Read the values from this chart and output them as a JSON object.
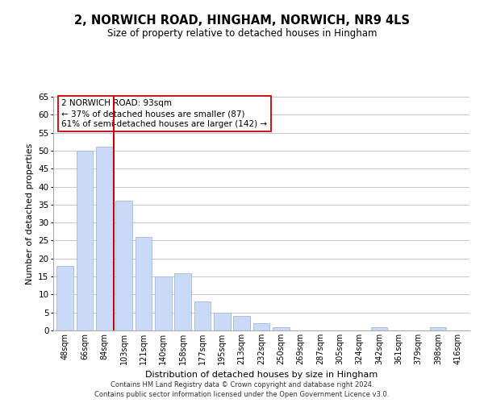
{
  "title": "2, NORWICH ROAD, HINGHAM, NORWICH, NR9 4LS",
  "subtitle": "Size of property relative to detached houses in Hingham",
  "xlabel": "Distribution of detached houses by size in Hingham",
  "ylabel": "Number of detached properties",
  "bar_labels": [
    "48sqm",
    "66sqm",
    "84sqm",
    "103sqm",
    "121sqm",
    "140sqm",
    "158sqm",
    "177sqm",
    "195sqm",
    "213sqm",
    "232sqm",
    "250sqm",
    "269sqm",
    "287sqm",
    "305sqm",
    "324sqm",
    "342sqm",
    "361sqm",
    "379sqm",
    "398sqm",
    "416sqm"
  ],
  "bar_values": [
    18,
    50,
    51,
    36,
    26,
    15,
    16,
    8,
    5,
    4,
    2,
    1,
    0,
    0,
    0,
    0,
    1,
    0,
    0,
    1,
    0
  ],
  "bar_color": "#c9daf8",
  "bar_edge_color": "#a4b8d4",
  "vline_color": "#cc0000",
  "ylim": [
    0,
    65
  ],
  "yticks": [
    0,
    5,
    10,
    15,
    20,
    25,
    30,
    35,
    40,
    45,
    50,
    55,
    60,
    65
  ],
  "annotation_title": "2 NORWICH ROAD: 93sqm",
  "annotation_line1": "← 37% of detached houses are smaller (87)",
  "annotation_line2": "61% of semi-detached houses are larger (142) →",
  "annotation_box_color": "#ffffff",
  "annotation_box_edge": "#cc0000",
  "footer1": "Contains HM Land Registry data © Crown copyright and database right 2024.",
  "footer2": "Contains public sector information licensed under the Open Government Licence v3.0.",
  "bg_color": "#ffffff",
  "grid_color": "#c0c8d8"
}
